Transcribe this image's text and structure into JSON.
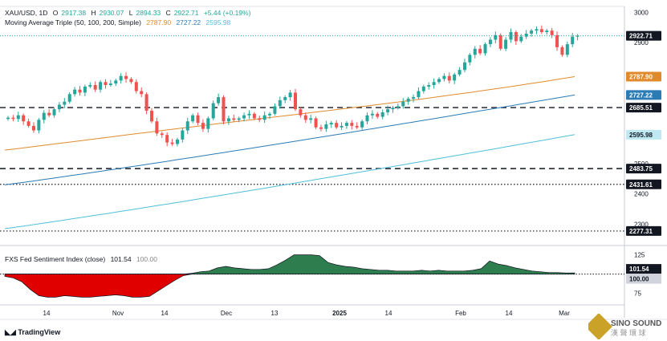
{
  "header": {
    "symbol": "XAU/USD, 1D",
    "open_label": "O",
    "open": "2917.38",
    "high_label": "H",
    "high": "2930.07",
    "low_label": "L",
    "low": "2894.33",
    "close_label": "C",
    "close": "2922.71",
    "change": "+5.44 (+0.19%)",
    "ma_title": "Moving Average Triple (50, 100, 200, Simple)",
    "ma50": "2787.90",
    "ma100": "2727.22",
    "ma200": "2595.98"
  },
  "sentiment_header": {
    "title": "FXS Fed Sentiment Index (close)",
    "value": "101.54",
    "baseline": "100.00"
  },
  "colors": {
    "up": "#26a69a",
    "down": "#ef5350",
    "ma50": "#e08a2c",
    "ma100": "#2b7bb5",
    "ma200": "#4fc0d8",
    "sentiment_pos": "#2e7d4f",
    "sentiment_neg": "#e00000"
  },
  "branding": {
    "tradingview": "TradingView",
    "watermark": "SINO SOUND"
  },
  "chart_data": {
    "type": "line",
    "title": "XAU/USD, 1D",
    "x_ticks": [
      "14",
      "Nov",
      "14",
      "Dec",
      "13",
      "2025",
      "14",
      "Feb",
      "14",
      "Mar"
    ],
    "y_ticks": [
      2300,
      2400,
      2500,
      2900,
      3000
    ],
    "ylim": [
      2240,
      3020
    ],
    "price_labels": [
      {
        "value": 2922.71,
        "label": "2922.71",
        "kind": "last"
      },
      {
        "value": 2787.9,
        "label": "2787.90",
        "kind": "ma50"
      },
      {
        "value": 2727.22,
        "label": "2727.22",
        "kind": "ma100"
      },
      {
        "value": 2685.51,
        "label": "2685.51",
        "kind": "level"
      },
      {
        "value": 2595.98,
        "label": "2595.98",
        "kind": "ma200"
      },
      {
        "value": 2483.75,
        "label": "2483.75",
        "kind": "level"
      },
      {
        "value": 2431.61,
        "label": "2431.61",
        "kind": "level"
      },
      {
        "value": 2277.31,
        "label": "2277.31",
        "kind": "level"
      }
    ],
    "horizontal_levels": [
      {
        "value": 2685.51,
        "style": "dashed"
      },
      {
        "value": 2483.75,
        "style": "dashed"
      },
      {
        "value": 2431.61,
        "style": "dotted"
      },
      {
        "value": 2277.31,
        "style": "dotted"
      }
    ],
    "candles_close": [
      2652,
      2648,
      2660,
      2640,
      2625,
      2610,
      2645,
      2668,
      2660,
      2680,
      2695,
      2705,
      2730,
      2745,
      2735,
      2755,
      2760,
      2745,
      2770,
      2760,
      2765,
      2775,
      2790,
      2780,
      2770,
      2740,
      2730,
      2675,
      2640,
      2600,
      2595,
      2570,
      2565,
      2580,
      2610,
      2640,
      2660,
      2635,
      2615,
      2650,
      2700,
      2720,
      2640,
      2650,
      2645,
      2650,
      2660,
      2665,
      2650,
      2645,
      2660,
      2665,
      2690,
      2710,
      2720,
      2735,
      2680,
      2660,
      2645,
      2650,
      2620,
      2615,
      2630,
      2635,
      2620,
      2625,
      2635,
      2625,
      2620,
      2640,
      2660,
      2665,
      2655,
      2670,
      2680,
      2685,
      2690,
      2705,
      2715,
      2720,
      2740,
      2755,
      2760,
      2770,
      2780,
      2790,
      2775,
      2795,
      2810,
      2835,
      2860,
      2880,
      2865,
      2895,
      2910,
      2925,
      2880,
      2910,
      2935,
      2905,
      2920,
      2930,
      2940,
      2945,
      2935,
      2940,
      2925,
      2885,
      2860,
      2895,
      2920,
      2922.71
    ],
    "series": [
      {
        "name": "MA 50",
        "start": 2545,
        "end": 2787.9
      },
      {
        "name": "MA 100",
        "start": 2430,
        "end": 2727.22
      },
      {
        "name": "MA 200",
        "start": 2285,
        "end": 2595.98
      }
    ],
    "sentiment": {
      "ylim": [
        60,
        135
      ],
      "y_ticks": [
        75,
        125
      ],
      "labels": [
        {
          "value": 101.54,
          "label": "101.54"
        },
        {
          "value": 100,
          "label": "100.00"
        }
      ],
      "values": [
        97,
        95,
        90,
        80,
        72,
        70,
        70,
        72,
        71,
        70,
        70,
        71,
        72,
        73,
        72,
        70,
        70,
        71,
        78,
        85,
        92,
        98,
        101,
        103,
        104,
        108,
        110,
        108,
        107,
        106,
        106,
        107,
        112,
        118,
        125,
        125,
        125,
        124,
        115,
        112,
        110,
        109,
        107,
        106,
        105,
        105,
        104,
        104,
        104,
        105,
        104,
        105,
        104,
        104,
        104,
        105,
        107,
        117,
        113,
        111,
        108,
        106,
        104,
        103,
        102,
        102,
        101.5,
        101.54
      ]
    }
  }
}
